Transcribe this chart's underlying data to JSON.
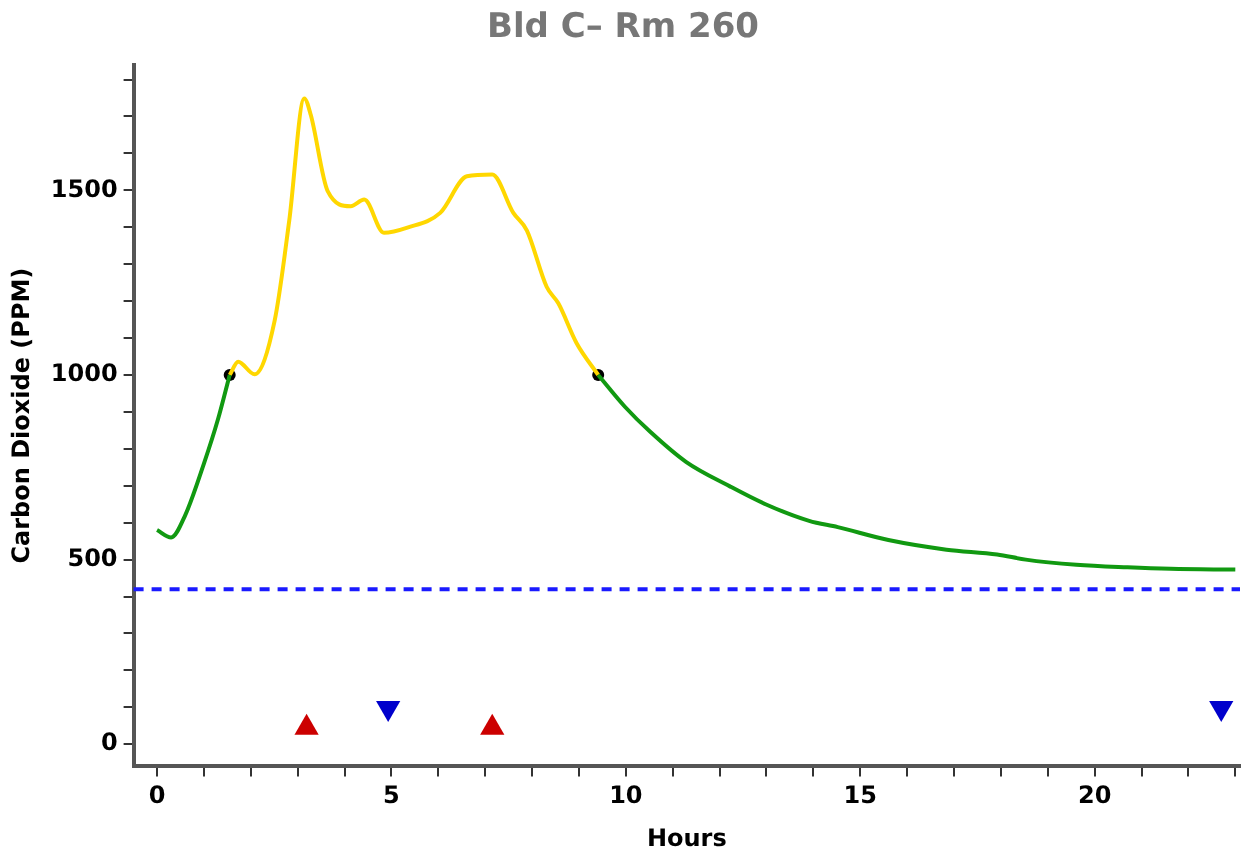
{
  "chart_data": {
    "type": "line",
    "title": "Bld C– Rm 260",
    "xlabel": "Hours",
    "ylabel": "Carbon Dioxide (PPM)",
    "xlim": [
      -0.5,
      23.1
    ],
    "ylim": [
      -60,
      1840
    ],
    "xticks": [
      0,
      {
        "value": 1,
        "label": null
      },
      {
        "value": 2,
        "label": null
      },
      {
        "value": 3,
        "label": null
      },
      {
        "value": 4,
        "label": null
      },
      5,
      {
        "value": 6,
        "label": null
      },
      {
        "value": 7,
        "label": null
      },
      {
        "value": 8,
        "label": null
      },
      {
        "value": 9,
        "label": null
      },
      10,
      {
        "value": 11,
        "label": null
      },
      {
        "value": 12,
        "label": null
      },
      {
        "value": 13,
        "label": null
      },
      {
        "value": 14,
        "label": null
      },
      15,
      {
        "value": 16,
        "label": null
      },
      {
        "value": 17,
        "label": null
      },
      {
        "value": 18,
        "label": null
      },
      {
        "value": 19,
        "label": null
      },
      20,
      {
        "value": 21,
        "label": null
      },
      {
        "value": 22,
        "label": null
      },
      {
        "value": 23,
        "label": null
      }
    ],
    "yticks": [
      0,
      {
        "value": 100,
        "label": null
      },
      {
        "value": 200,
        "label": null
      },
      {
        "value": 300,
        "label": null
      },
      {
        "value": 400,
        "label": null
      },
      500,
      {
        "value": 600,
        "label": null
      },
      {
        "value": 700,
        "label": null
      },
      {
        "value": 800,
        "label": null
      },
      {
        "value": 900,
        "label": null
      },
      1000,
      {
        "value": 1100,
        "label": null
      },
      {
        "value": 1200,
        "label": null
      },
      {
        "value": 1300,
        "label": null
      },
      {
        "value": 1400,
        "label": null
      },
      1500,
      {
        "value": 1600,
        "label": null
      },
      {
        "value": 1700,
        "label": null
      },
      {
        "value": 1800,
        "label": null
      }
    ],
    "grid": false,
    "legend": false,
    "ref_lines": [
      {
        "axis": "y",
        "value": 420,
        "color": "#1a1aff",
        "line_style": "dashed"
      }
    ],
    "series": [
      {
        "color": "#119911",
        "marker": "none",
        "x": [
          0,
          0.3,
          0.6,
          1.0,
          1.3,
          1.55,
          5,
          9.41,
          9.98,
          10.52,
          11.29,
          12.21,
          12.98,
          13.91,
          14.52,
          15.6,
          16.84,
          17.92,
          18.53,
          19.61,
          20.7,
          21.62,
          23.0
        ],
        "values": [
          580,
          560,
          620,
          760,
          880,
          1000,
          null,
          1000,
          914,
          846,
          764,
          699,
          650,
          605,
          588,
          553,
          527,
          514,
          500,
          486,
          479,
          475,
          473
        ]
      },
      {
        "color": "#ffd700",
        "marker": "none",
        "x": [
          1.55,
          1.73,
          2.08,
          2.51,
          2.82,
          3.14,
          3.28,
          3.64,
          4.13,
          4.42,
          4.84,
          5.34,
          6.04,
          6.61,
          7.15,
          7.6,
          7.89,
          8.31,
          8.56,
          8.95,
          9.41
        ],
        "values": [
          1000,
          1036,
          1002,
          1148,
          1418,
          1749,
          1704,
          1498,
          1457,
          1475,
          1385,
          1399,
          1439,
          1538,
          1543,
          1439,
          1391,
          1239,
          1194,
          1086,
          1000
        ]
      },
      {
        "type": "scatter",
        "color": "#000000",
        "marker": "circle",
        "x": [
          1.55,
          9.41
        ],
        "values": [
          1000,
          1000
        ]
      },
      {
        "type": "scatter",
        "color": "#cc0000",
        "marker": "triangle",
        "x": [
          3.19,
          7.15
        ],
        "values": [
          45,
          45
        ]
      },
      {
        "type": "scatter",
        "color": "#0000cc",
        "marker": "triangle-down",
        "x": [
          4.93,
          22.7
        ],
        "values": [
          98,
          98
        ]
      }
    ]
  }
}
